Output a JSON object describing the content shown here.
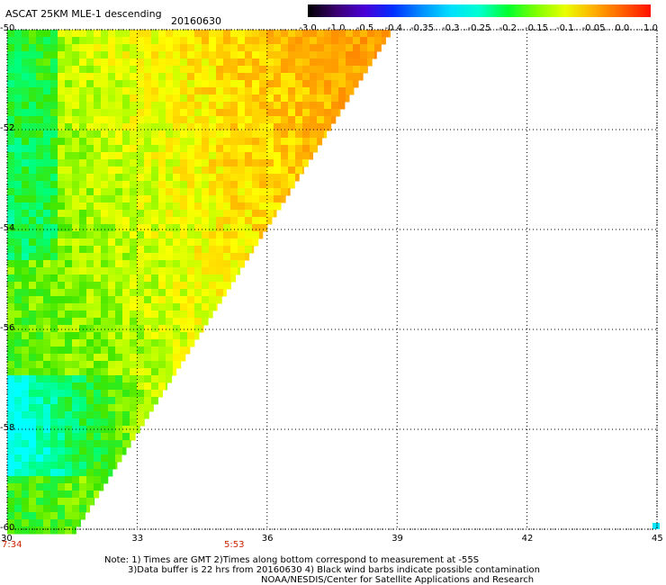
{
  "header": {
    "title": "ASCAT 25KM MLE-1 descending",
    "date": "20160630"
  },
  "colorbar": {
    "labels": [
      "-3.0",
      "-1.0",
      "-0.5",
      "-0.4",
      "-0.35",
      "-0.3",
      "-0.25",
      "-0.2",
      "-0.15",
      "-0.1",
      "-0.05",
      "0.0",
      "1.0"
    ],
    "colors": [
      "#000000",
      "#3a0070",
      "#4800d8",
      "#0030ff",
      "#0090ff",
      "#00e0ff",
      "#00ffd0",
      "#00ff30",
      "#80ff00",
      "#e8ff00",
      "#ffb000",
      "#ff6000",
      "#ff1000"
    ]
  },
  "chart_data": {
    "type": "heatmap",
    "x_ticks": [
      "30",
      "33",
      "36",
      "39",
      "42",
      "45"
    ],
    "y_ticks": [
      "-50",
      "-52",
      "-54",
      "-56",
      "-58",
      "-60"
    ],
    "x_range": [
      30,
      45
    ],
    "y_range": [
      -60,
      -50
    ],
    "swath_edge_note": "data present west of diagonal swath edge"
  },
  "times": [
    "7:34",
    "5:53"
  ],
  "footer": {
    "line1": "Note: 1) Times are GMT 2)Times along bottom correspond to measurement at -55S",
    "line2": "3)Data buffer is 22 hrs from 20160630 4) Black wind barbs indicate possible contamination",
    "line3": "NOAA/NESDIS/Center for Satellite Applications and Research"
  }
}
